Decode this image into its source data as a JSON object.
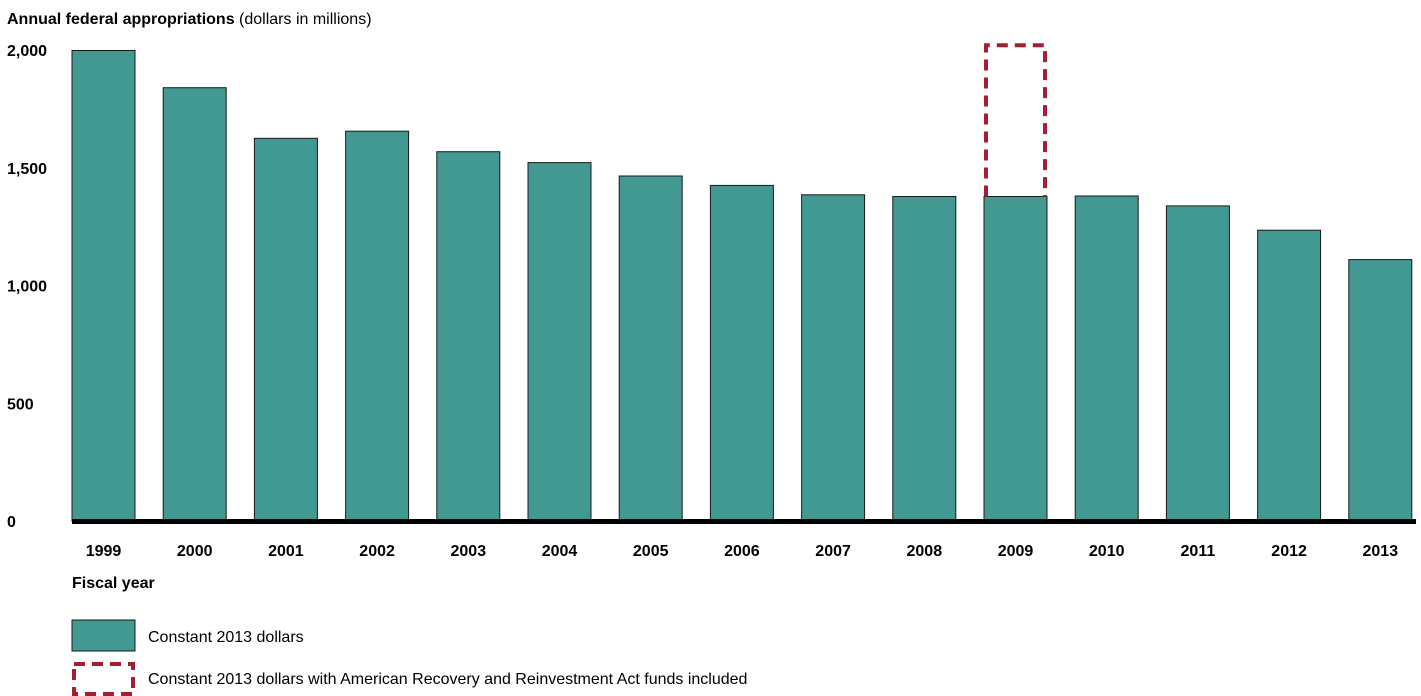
{
  "chart_data": {
    "type": "bar",
    "title": "",
    "ylabel": {
      "bold": "Annual federal appropriations",
      "normal": " (dollars in millions)"
    },
    "xlabel": "Fiscal year",
    "ylim": [
      0,
      2000
    ],
    "yticks": [
      {
        "value": 0,
        "label": "0"
      },
      {
        "value": 500,
        "label": "500"
      },
      {
        "value": 1000,
        "label": "1,000"
      },
      {
        "value": 1500,
        "label": "1,500"
      },
      {
        "value": 2000,
        "label": "2,000"
      }
    ],
    "grid": false,
    "categories": [
      "1999",
      "2000",
      "2001",
      "2002",
      "2003",
      "2004",
      "2005",
      "2006",
      "2007",
      "2008",
      "2009",
      "2010",
      "2011",
      "2012",
      "2013"
    ],
    "series": [
      {
        "name": "Constant 2013 dollars",
        "style": "solid",
        "values": [
          1998,
          1840,
          1625,
          1655,
          1568,
          1522,
          1465,
          1425,
          1385,
          1378,
          1378,
          1380,
          1338,
          1235,
          1110
        ]
      },
      {
        "name": "Constant 2013 dollars with American Recovery and Reinvestment Act funds included",
        "style": "dashed-outline",
        "values": [
          null,
          null,
          null,
          null,
          null,
          null,
          null,
          null,
          null,
          null,
          2020,
          null,
          null,
          null,
          null
        ]
      }
    ],
    "legend_position": "bottom-left",
    "colors": {
      "bar_fill": "#419991",
      "bar_stroke": "#1a1a1a",
      "arra_stroke": "#a31f34",
      "axis": "#000000"
    }
  }
}
